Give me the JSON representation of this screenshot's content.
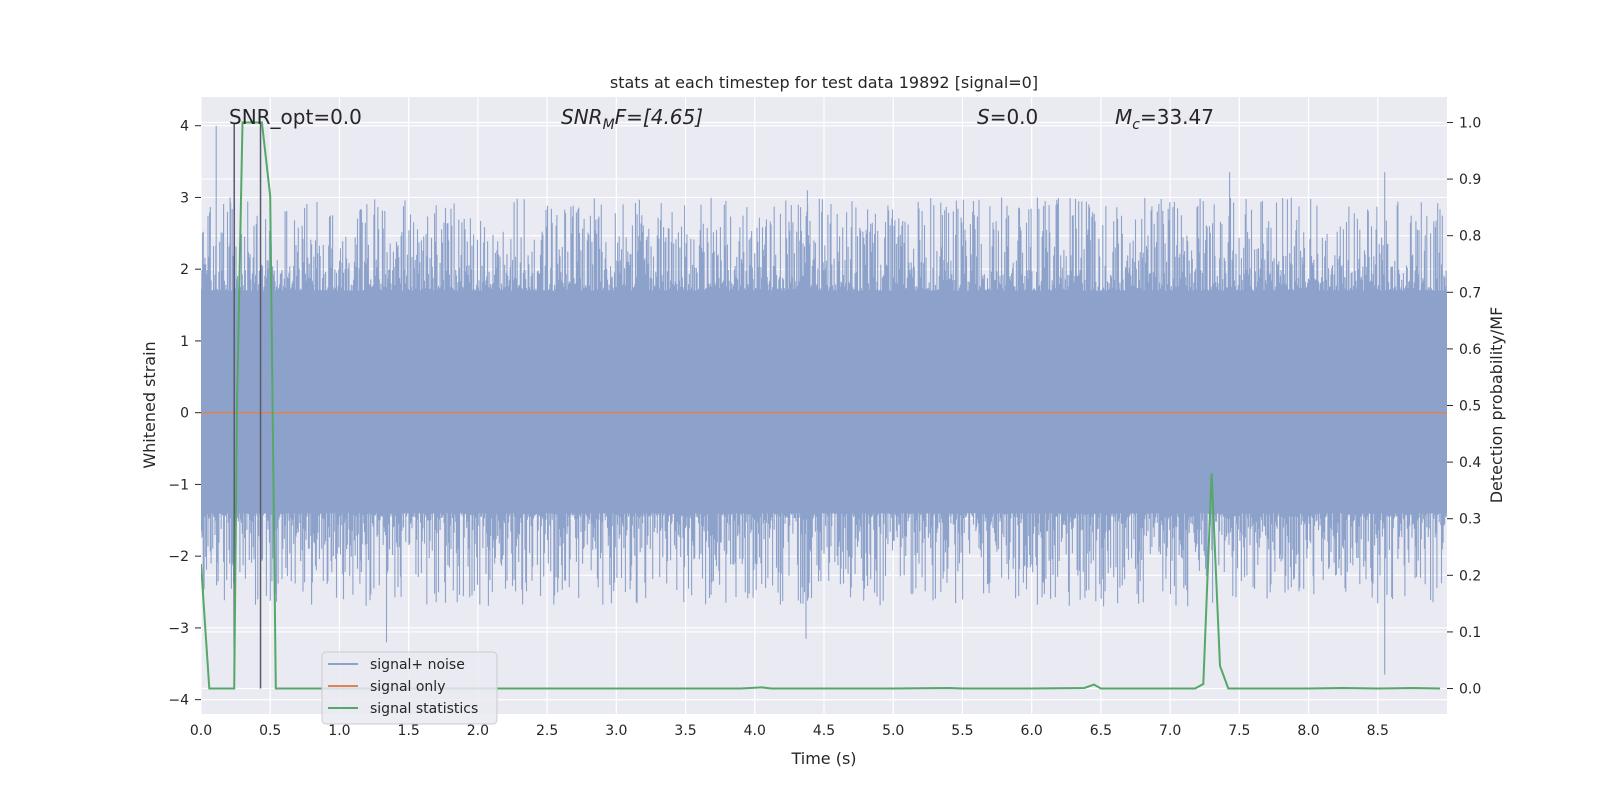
{
  "chart_data": {
    "type": "line",
    "title": "stats at each timestep for test data 19892 [signal=0]",
    "xlabel": "Time (s)",
    "ylabel_left": "Whitened strain",
    "ylabel_right": "Detection probability/MF",
    "xlim": [
      0.0,
      9.0
    ],
    "ylim_left": [
      -4.2,
      4.4
    ],
    "ylim_right": [
      -0.045,
      1.045
    ],
    "x_ticks": [
      "0.0",
      "0.5",
      "1.0",
      "1.5",
      "2.0",
      "2.5",
      "3.0",
      "3.5",
      "4.0",
      "4.5",
      "5.0",
      "5.5",
      "6.0",
      "6.5",
      "7.0",
      "7.5",
      "8.0",
      "8.5"
    ],
    "y_ticks_left": [
      "4",
      "3",
      "2",
      "1",
      "0",
      "−1",
      "−2",
      "−3",
      "−4"
    ],
    "y_ticks_right": [
      "1.0",
      "0.9",
      "0.8",
      "0.7",
      "0.6",
      "0.5",
      "0.4",
      "0.3",
      "0.2",
      "0.1",
      "0.0"
    ],
    "grid": true,
    "annotations": {
      "snr_opt": "SNR_opt=0.0",
      "snr_mf_sym": "SNR",
      "snr_mf_sub": "M",
      "snr_mf_rest": "F=[4.65]",
      "s_sym": "S",
      "s_rest": "=0.0",
      "mc_sym": "M",
      "mc_sub": "c",
      "mc_rest": "=33.47"
    },
    "vertical_lines_x": [
      0.24,
      0.43
    ],
    "series": [
      {
        "name": "signal+ noise",
        "color": "#8da2ca",
        "description_values": {
          "core_band": [
            -1.4,
            1.7
          ],
          "typical_peaks": [
            2.4,
            -2.2
          ],
          "notable_peaks": [
            [
              0.11,
              4.0
            ],
            [
              0.21,
              3.0
            ],
            [
              4.38,
              3.1
            ],
            [
              7.43,
              3.35
            ],
            [
              8.55,
              3.35
            ],
            [
              8.55,
              -3.65
            ],
            [
              1.34,
              -3.2
            ],
            [
              4.37,
              -3.15
            ]
          ]
        }
      },
      {
        "name": "signal only",
        "color": "#dd8452",
        "values_constant": 0.0
      },
      {
        "name": "signal statistics",
        "color": "#55a868",
        "x": [
          0.0,
          0.06,
          0.12,
          0.24,
          0.26,
          0.3,
          0.42,
          0.44,
          0.5,
          0.54,
          0.56,
          0.6,
          1.0,
          2.0,
          3.0,
          3.9,
          4.05,
          4.12,
          5.0,
          5.4,
          5.5,
          6.0,
          6.38,
          6.45,
          6.5,
          7.0,
          7.18,
          7.24,
          7.3,
          7.36,
          7.42,
          8.0,
          8.25,
          8.5,
          8.75,
          8.95
        ],
        "values": [
          0.22,
          0.0,
          0.0,
          0.0,
          0.5,
          1.0,
          1.0,
          1.0,
          0.87,
          0.0,
          0.0,
          0.0,
          0.0,
          0.0,
          0.0,
          0.0,
          0.002,
          0.0,
          0.0,
          0.001,
          0.0,
          0.0,
          0.001,
          0.007,
          0.0,
          0.0,
          0.0,
          0.008,
          0.38,
          0.04,
          0.0,
          0.0,
          0.001,
          0.0,
          0.001,
          0.0
        ]
      }
    ],
    "legend_position": "lower-left"
  }
}
